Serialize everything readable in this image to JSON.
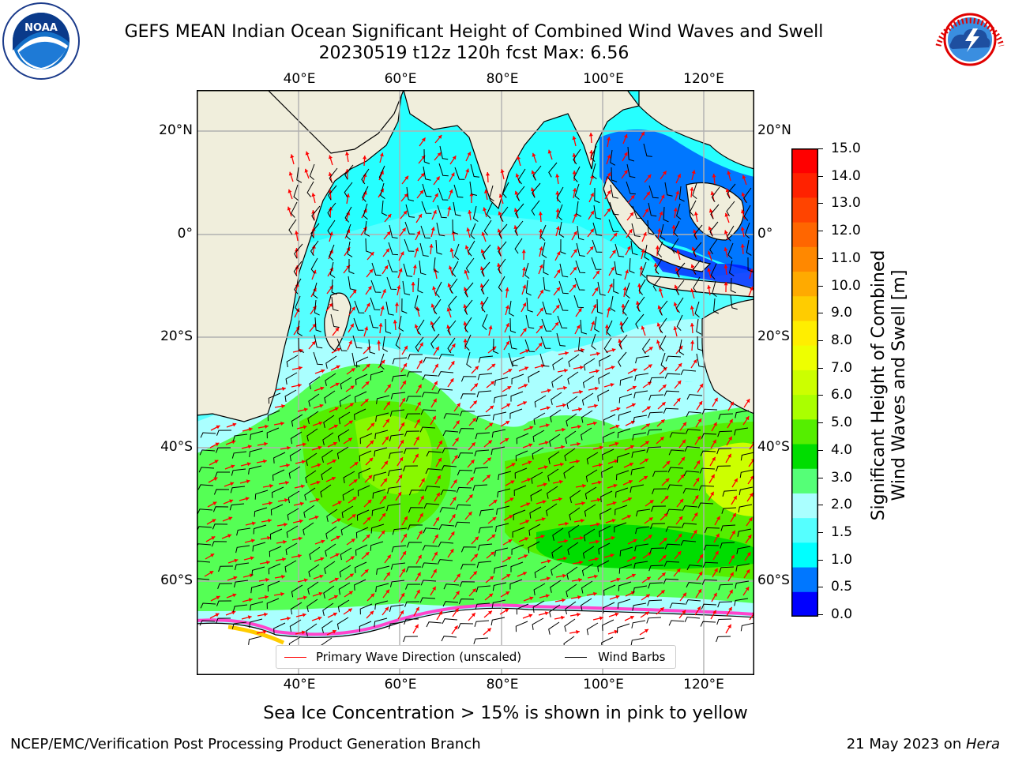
{
  "header": {
    "title_line1": "GEFS MEAN Indian Ocean Significant Height of Combined Wind Waves and Swell",
    "title_line2": "20230519 t12z 120h fcst   Max: 6.56"
  },
  "logos": {
    "noaa_text": "NOAA",
    "nws_text": "NATIONAL WEATHER SERVICE"
  },
  "map": {
    "lon_ticks_top": [
      "40°E",
      "60°E",
      "80°E",
      "100°E",
      "120°E"
    ],
    "lon_ticks_bottom": [
      "40°E",
      "60°E",
      "80°E",
      "100°E",
      "120°E"
    ],
    "lat_ticks_left": [
      "20°N",
      "0°",
      "20°S",
      "40°S",
      "60°S"
    ],
    "lat_ticks_right": [
      "20°N",
      "0°",
      "20°S",
      "40°S",
      "60°S"
    ],
    "lon_range": [
      20,
      130
    ],
    "lat_range": [
      -73,
      29
    ],
    "colors": {
      "land": "#f0eedc",
      "ocean_low": "#00ffff",
      "ocean_mid": "#aaffff",
      "ocean_high": "#55ff55",
      "ocean_peak": "#55ee00",
      "arrows": "#ff0000",
      "barbs": "#000000",
      "sea_ice_edge": "#ff44cc"
    },
    "legend": {
      "wave_direction": "Primary Wave Direction (unscaled)",
      "wind_barbs": "Wind Barbs"
    }
  },
  "colorbar": {
    "ticks": [
      "15.0",
      "14.0",
      "13.0",
      "12.0",
      "11.0",
      "10.0",
      "9.0",
      "8.0",
      "7.0",
      "6.0",
      "5.0",
      "4.0",
      "3.0",
      "2.0",
      "1.5",
      "1.0",
      "0.5",
      "0.0"
    ],
    "colors_top_to_bottom": [
      "#ff0000",
      "#ff2200",
      "#ff4400",
      "#ff6600",
      "#ff8800",
      "#ffaa00",
      "#ffcc00",
      "#ffee00",
      "#eeff00",
      "#ccff00",
      "#aaff00",
      "#55ee00",
      "#00dd00",
      "#55ff77",
      "#aaffff",
      "#55ffff",
      "#00ffff",
      "#0077ff",
      "#0000ff"
    ],
    "label_line1": "Significant Height of Combined",
    "label_line2": "Wind Waves and Swell [m]"
  },
  "notes": {
    "sea_ice": "Sea Ice Concentration > 15% is shown in pink to yellow"
  },
  "footer": {
    "left": "NCEP/EMC/Verification Post Processing Product Generation Branch",
    "right_prefix": "21 May 2023 on ",
    "right_host": "Hera"
  }
}
